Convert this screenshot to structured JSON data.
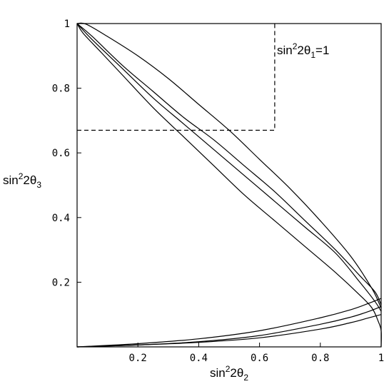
{
  "chart_data": {
    "type": "line",
    "title": "",
    "xlabel": "sin²2θ₂",
    "ylabel": "sin²2θ₃",
    "xlabel_parts": {
      "base": "sin",
      "sup": "2",
      "mid": "2θ",
      "sub": "2"
    },
    "ylabel_parts": {
      "base": "sin",
      "sup": "2",
      "mid": "2θ",
      "sub": "3"
    },
    "xlim": [
      0,
      1
    ],
    "ylim": [
      0,
      1
    ],
    "x_ticks": [
      {
        "value": 0.2,
        "label": "0.2"
      },
      {
        "value": 0.4,
        "label": "0.4"
      },
      {
        "value": 0.6,
        "label": "0.6"
      },
      {
        "value": 0.8,
        "label": "0.8"
      },
      {
        "value": 1.0,
        "label": "1"
      }
    ],
    "y_ticks": [
      {
        "value": 0.2,
        "label": "0.2"
      },
      {
        "value": 0.4,
        "label": "0.4"
      },
      {
        "value": 0.6,
        "label": "0.6"
      },
      {
        "value": 0.8,
        "label": "0.8"
      },
      {
        "value": 1.0,
        "label": "1"
      }
    ],
    "grid": false,
    "legend": "none",
    "annotation": {
      "base": "sin",
      "sup": "2",
      "mid": "2θ",
      "sub": "1",
      "tail": "=1"
    },
    "series": [
      {
        "style": "solid",
        "points": [
          [
            0.0,
            1.0
          ],
          [
            0.02,
            0.97
          ],
          [
            0.08,
            0.91
          ],
          [
            0.15,
            0.84
          ],
          [
            0.25,
            0.74
          ],
          [
            0.35,
            0.65
          ],
          [
            0.45,
            0.56
          ],
          [
            0.55,
            0.47
          ],
          [
            0.65,
            0.39
          ],
          [
            0.75,
            0.31
          ],
          [
            0.85,
            0.23
          ],
          [
            0.93,
            0.16
          ],
          [
            0.97,
            0.12
          ],
          [
            0.99,
            0.08
          ],
          [
            1.0,
            0.05
          ],
          [
            1.0,
            0.0
          ]
        ]
      },
      {
        "style": "solid",
        "points": [
          [
            0.0,
            1.0
          ],
          [
            0.05,
            0.95
          ],
          [
            0.15,
            0.86
          ],
          [
            0.25,
            0.77
          ],
          [
            0.35,
            0.69
          ],
          [
            0.45,
            0.61
          ],
          [
            0.55,
            0.53
          ],
          [
            0.65,
            0.45
          ],
          [
            0.75,
            0.37
          ],
          [
            0.85,
            0.29
          ],
          [
            0.93,
            0.2
          ],
          [
            0.98,
            0.14
          ],
          [
            1.0,
            0.11
          ]
        ]
      },
      {
        "style": "solid",
        "points": [
          [
            0.0,
            1.0
          ],
          [
            0.05,
            0.96
          ],
          [
            0.15,
            0.87
          ],
          [
            0.25,
            0.79
          ],
          [
            0.35,
            0.71
          ],
          [
            0.45,
            0.64
          ],
          [
            0.55,
            0.56
          ],
          [
            0.65,
            0.48
          ],
          [
            0.75,
            0.39
          ],
          [
            0.85,
            0.3
          ],
          [
            0.93,
            0.22
          ],
          [
            0.98,
            0.17
          ],
          [
            1.0,
            0.13
          ]
        ]
      },
      {
        "style": "solid",
        "points": [
          [
            0.0,
            1.0
          ],
          [
            0.03,
            0.998
          ],
          [
            0.1,
            0.96
          ],
          [
            0.2,
            0.9
          ],
          [
            0.3,
            0.83
          ],
          [
            0.4,
            0.75
          ],
          [
            0.5,
            0.67
          ],
          [
            0.6,
            0.58
          ],
          [
            0.7,
            0.49
          ],
          [
            0.8,
            0.39
          ],
          [
            0.9,
            0.28
          ],
          [
            0.97,
            0.18
          ],
          [
            1.0,
            0.12
          ]
        ]
      },
      {
        "style": "solid",
        "points": [
          [
            0.0,
            0.0
          ],
          [
            0.2,
            0.006
          ],
          [
            0.4,
            0.014
          ],
          [
            0.6,
            0.028
          ],
          [
            0.8,
            0.055
          ],
          [
            0.9,
            0.075
          ],
          [
            0.96,
            0.09
          ],
          [
            1.0,
            0.1
          ]
        ]
      },
      {
        "style": "solid",
        "points": [
          [
            0.0,
            0.0
          ],
          [
            0.2,
            0.006
          ],
          [
            0.4,
            0.016
          ],
          [
            0.6,
            0.035
          ],
          [
            0.8,
            0.07
          ],
          [
            0.9,
            0.092
          ],
          [
            0.96,
            0.11
          ],
          [
            1.0,
            0.125
          ]
        ]
      },
      {
        "style": "solid",
        "points": [
          [
            0.0,
            0.0
          ],
          [
            0.2,
            0.01
          ],
          [
            0.4,
            0.025
          ],
          [
            0.6,
            0.05
          ],
          [
            0.8,
            0.09
          ],
          [
            0.9,
            0.115
          ],
          [
            0.96,
            0.135
          ],
          [
            1.0,
            0.15
          ]
        ]
      },
      {
        "style": "dashed",
        "points": [
          [
            0.0,
            0.67
          ],
          [
            0.65,
            0.67
          ],
          [
            0.65,
            1.0
          ]
        ]
      }
    ]
  }
}
